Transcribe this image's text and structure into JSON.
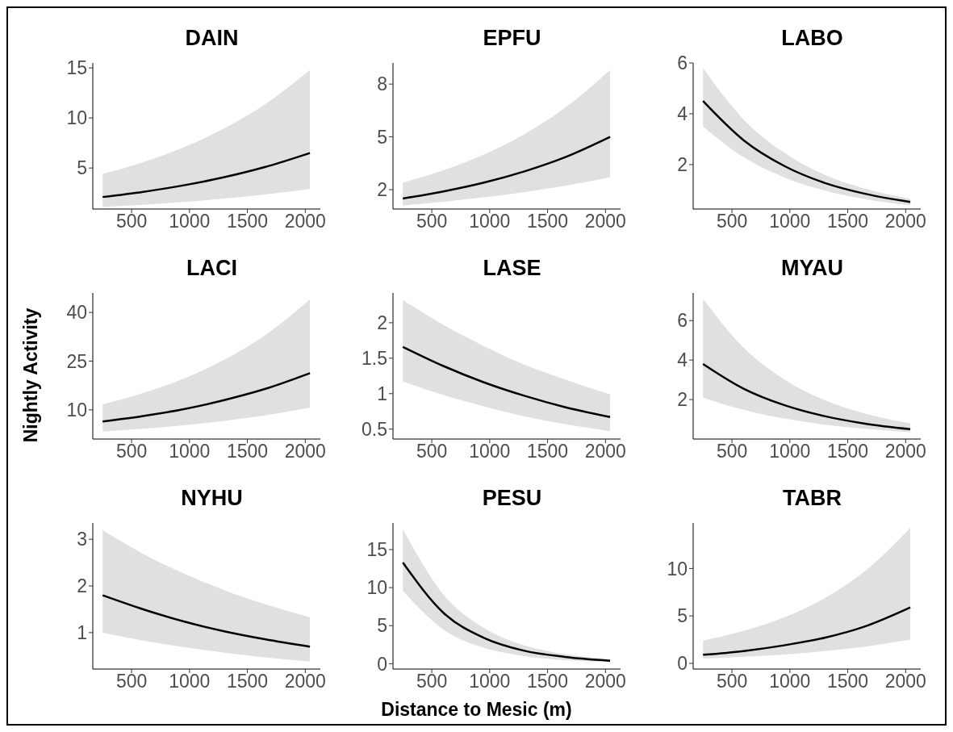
{
  "chart_data": [
    {
      "type": "line",
      "title": "DAIN",
      "x": [
        250,
        600,
        950,
        1300,
        1650,
        2040
      ],
      "xlim": [
        165,
        2130
      ],
      "xticks": [
        500,
        1000,
        1500,
        2000
      ],
      "ylim": [
        0.9,
        15.5
      ],
      "yticks": [
        5,
        10,
        15
      ],
      "series": [
        {
          "color": "#000000",
          "values": [
            2.1,
            2.62,
            3.27,
            4.08,
            5.09,
            6.5
          ],
          "lower": [
            1.1,
            1.33,
            1.61,
            1.94,
            2.35,
            2.9
          ],
          "upper": [
            4.4,
            5.58,
            7.07,
            8.96,
            11.35,
            14.8
          ]
        }
      ]
    },
    {
      "type": "line",
      "title": "EPFU",
      "x": [
        250,
        600,
        950,
        1300,
        1650,
        2040
      ],
      "xlim": [
        165,
        2130
      ],
      "xticks": [
        500,
        1000,
        1500,
        2000
      ],
      "ylim": [
        0.9,
        9.2
      ],
      "yticks": [
        2,
        5,
        8
      ],
      "series": [
        {
          "color": "#000000",
          "values": [
            1.5,
            1.9,
            2.4,
            3.04,
            3.84,
            5.0
          ],
          "lower": [
            1.1,
            1.31,
            1.56,
            1.86,
            2.22,
            2.7
          ],
          "upper": [
            2.4,
            3.1,
            3.99,
            5.15,
            6.64,
            8.8
          ]
        }
      ]
    },
    {
      "type": "line",
      "title": "LABO",
      "x": [
        250,
        600,
        950,
        1300,
        1650,
        2040
      ],
      "xlim": [
        165,
        2130
      ],
      "xticks": [
        500,
        1000,
        1500,
        2000
      ],
      "ylim": [
        0.25,
        6
      ],
      "yticks": [
        2,
        4,
        6
      ],
      "series": [
        {
          "color": "#000000",
          "values": [
            4.5,
            2.96,
            1.95,
            1.28,
            0.85,
            0.53
          ],
          "lower": [
            3.5,
            2.29,
            1.5,
            0.98,
            0.64,
            0.4
          ],
          "upper": [
            5.8,
            3.78,
            2.47,
            1.6,
            1.05,
            0.65
          ]
        }
      ]
    },
    {
      "type": "line",
      "title": "LACI",
      "ylabel": "Nightly Activity",
      "x": [
        250,
        600,
        950,
        1300,
        1650,
        2040
      ],
      "xlim": [
        165,
        2130
      ],
      "xticks": [
        500,
        1000,
        1500,
        2000
      ],
      "ylim": [
        1,
        46
      ],
      "yticks": [
        10,
        25,
        40
      ],
      "series": [
        {
          "color": "#000000",
          "values": [
            6.4,
            8.1,
            10.2,
            13.0,
            16.4,
            21.3
          ],
          "lower": [
            3.3,
            4.15,
            5.23,
            6.58,
            8.28,
            10.7
          ],
          "upper": [
            11.7,
            15.2,
            19.6,
            25.4,
            32.9,
            44
          ]
        }
      ]
    },
    {
      "type": "line",
      "title": "LASE",
      "x": [
        250,
        600,
        950,
        1300,
        1650,
        2040
      ],
      "xlim": [
        165,
        2130
      ],
      "xticks": [
        500,
        1000,
        1500,
        2000
      ],
      "ylim": [
        0.36,
        2.42
      ],
      "yticks": [
        0.5,
        1,
        1.5,
        2
      ],
      "series": [
        {
          "color": "#000000",
          "values": [
            1.66,
            1.39,
            1.16,
            0.97,
            0.81,
            0.67
          ],
          "lower": [
            1.17,
            0.98,
            0.82,
            0.68,
            0.57,
            0.47
          ],
          "upper": [
            2.32,
            1.97,
            1.67,
            1.41,
            1.2,
            0.99
          ]
        }
      ]
    },
    {
      "type": "line",
      "title": "MYAU",
      "x": [
        250,
        600,
        950,
        1300,
        1650,
        2040
      ],
      "xlim": [
        165,
        2130
      ],
      "xticks": [
        500,
        1000,
        1500,
        2000
      ],
      "ylim": [
        0,
        7.4
      ],
      "yticks": [
        2,
        4,
        6
      ],
      "series": [
        {
          "color": "#000000",
          "values": [
            3.8,
            2.55,
            1.72,
            1.16,
            0.78,
            0.5
          ],
          "lower": [
            2.1,
            1.48,
            1.04,
            0.73,
            0.52,
            0.35
          ],
          "upper": [
            7.1,
            4.63,
            3.03,
            1.97,
            1.29,
            0.8
          ]
        }
      ]
    },
    {
      "type": "line",
      "title": "NYHU",
      "x": [
        250,
        600,
        950,
        1300,
        1650,
        2040
      ],
      "xlim": [
        165,
        2130
      ],
      "xticks": [
        500,
        1000,
        1500,
        2000
      ],
      "ylim": [
        0.22,
        3.35
      ],
      "yticks": [
        1,
        2,
        3
      ],
      "series": [
        {
          "color": "#000000",
          "values": [
            1.8,
            1.5,
            1.24,
            1.03,
            0.86,
            0.7
          ],
          "lower": [
            1.0,
            0.83,
            0.69,
            0.57,
            0.47,
            0.38
          ],
          "upper": [
            3.2,
            2.69,
            2.27,
            1.91,
            1.61,
            1.33
          ]
        }
      ]
    },
    {
      "type": "line",
      "title": "PESU",
      "xlabel": "Distance to Mesic (m)",
      "x": [
        250,
        600,
        950,
        1300,
        1650,
        2040
      ],
      "xlim": [
        165,
        2130
      ],
      "xticks": [
        500,
        1000,
        1500,
        2000
      ],
      "ylim": [
        -0.7,
        18.5
      ],
      "yticks": [
        0,
        5,
        10,
        15
      ],
      "series": [
        {
          "color": "#000000",
          "values": [
            13.3,
            6.7,
            3.4,
            1.7,
            0.9,
            0.4
          ],
          "lower": [
            9.6,
            4.5,
            2.1,
            1.0,
            0.47,
            0.2
          ],
          "upper": [
            17.7,
            9.1,
            4.7,
            2.4,
            1.26,
            0.6
          ]
        }
      ]
    },
    {
      "type": "line",
      "title": "TABR",
      "x": [
        250,
        600,
        950,
        1300,
        1650,
        2040
      ],
      "xlim": [
        165,
        2130
      ],
      "xticks": [
        500,
        1000,
        1500,
        2000
      ],
      "ylim": [
        -0.6,
        14.8
      ],
      "yticks": [
        0,
        5,
        10
      ],
      "series": [
        {
          "color": "#000000",
          "values": [
            0.9,
            1.3,
            1.9,
            2.7,
            3.9,
            5.9
          ],
          "lower": [
            0.5,
            0.69,
            0.94,
            1.29,
            1.76,
            2.5
          ],
          "upper": [
            2.4,
            3.41,
            4.84,
            6.87,
            9.74,
            14.3
          ]
        }
      ]
    }
  ]
}
